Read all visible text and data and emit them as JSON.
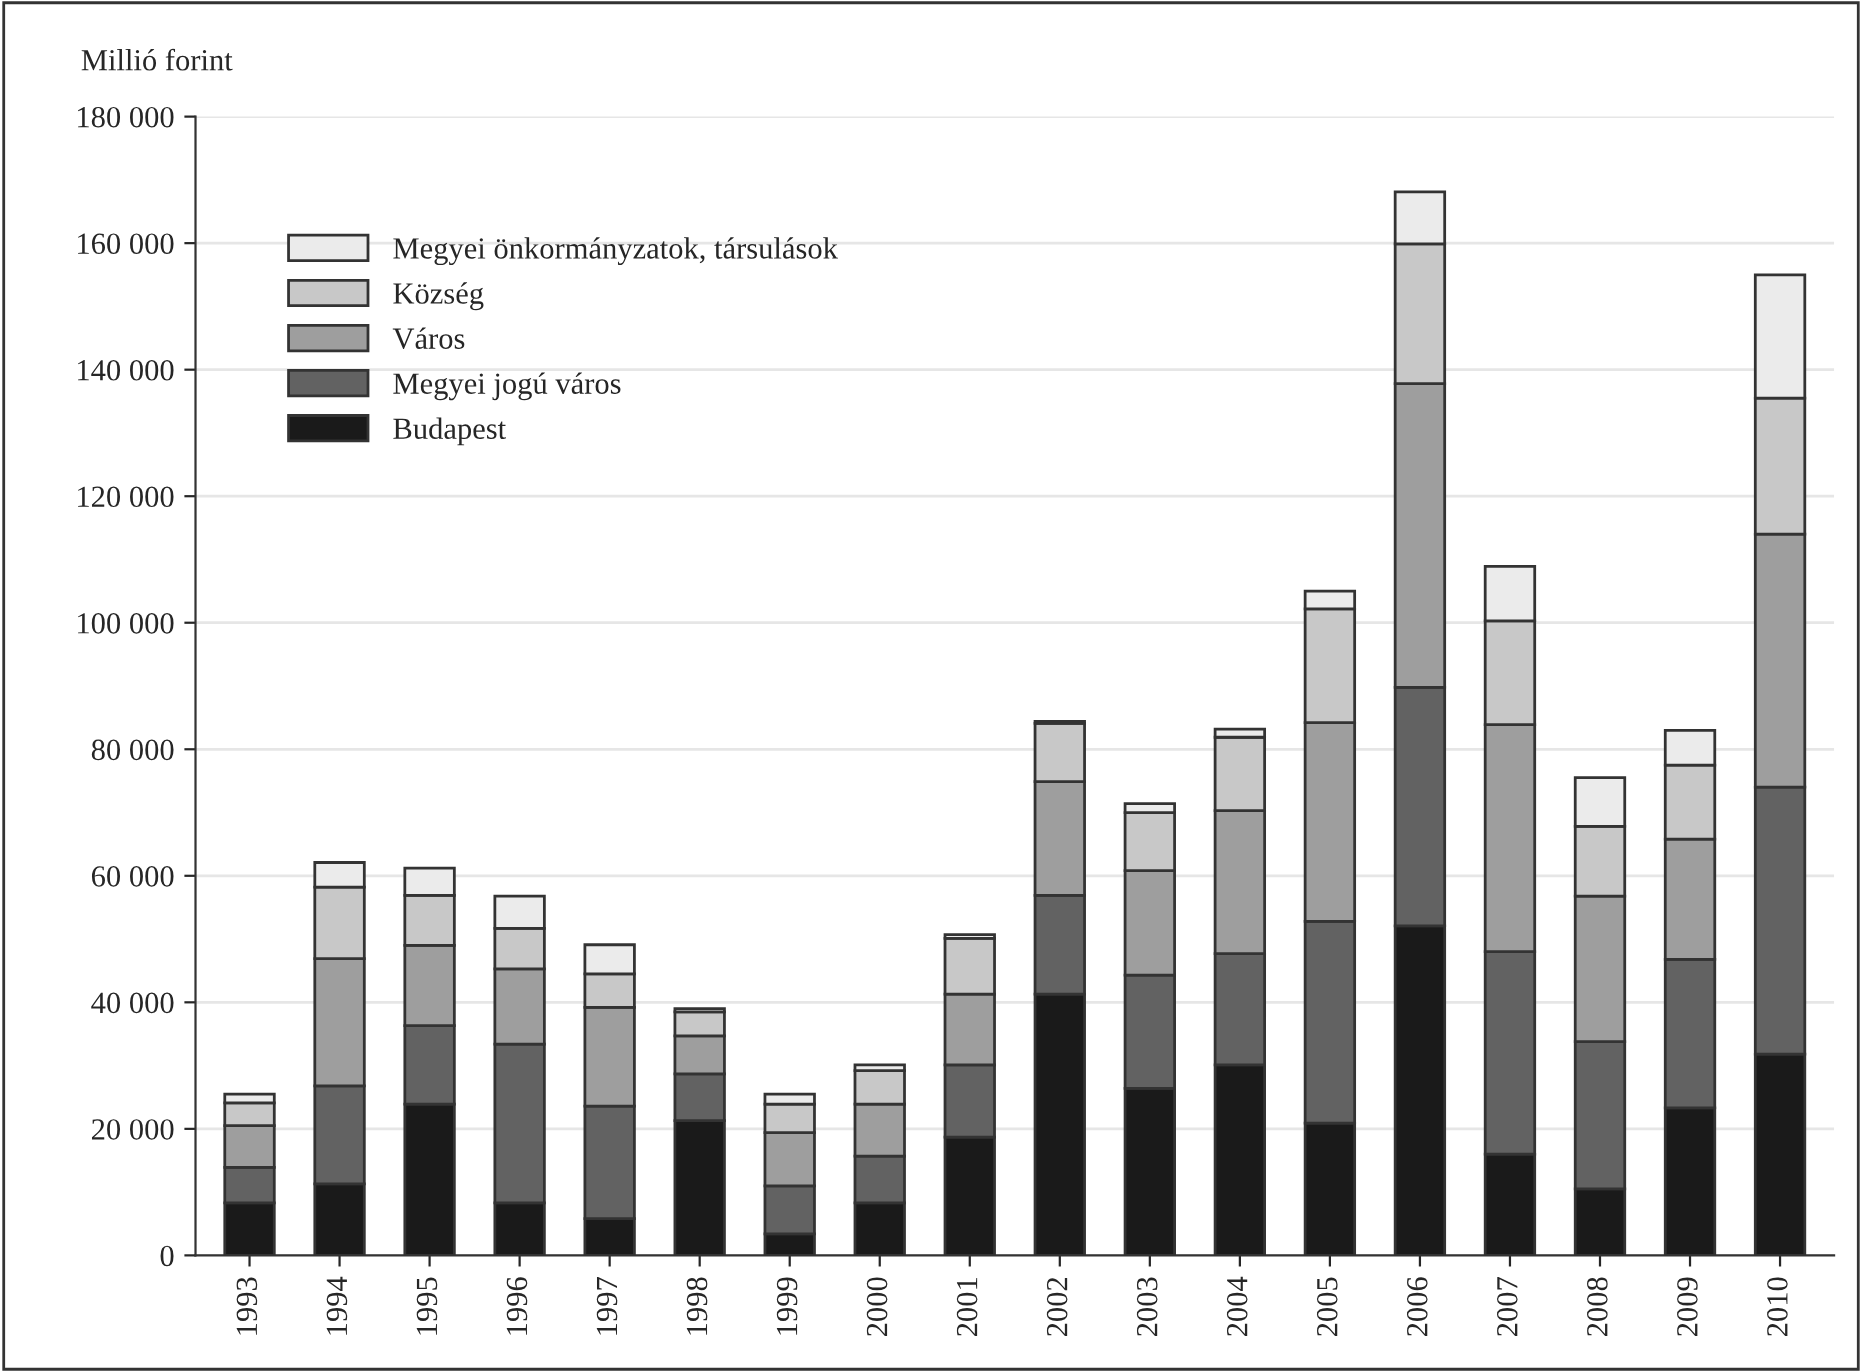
{
  "chart_data": {
    "type": "bar",
    "stacked": true,
    "ylabel": "Millió forint",
    "categories": [
      "1993",
      "1994",
      "1995",
      "1996",
      "1997",
      "1998",
      "1999",
      "2000",
      "2001",
      "2002",
      "2003",
      "2004",
      "2005",
      "2006",
      "2007",
      "2008",
      "2009",
      "2010"
    ],
    "series": [
      {
        "name": "Budapest",
        "color": "#1a1a1a",
        "values": [
          8300,
          11300,
          23900,
          8300,
          5800,
          21300,
          3400,
          8300,
          18700,
          41300,
          26400,
          30100,
          20900,
          52100,
          16000,
          10500,
          23300,
          31800
        ]
      },
      {
        "name": "Megyei jogú város",
        "color": "#626262",
        "values": [
          5600,
          15500,
          12400,
          25100,
          17800,
          7400,
          7600,
          7400,
          11400,
          15600,
          17900,
          17600,
          31900,
          37700,
          32000,
          23300,
          23500,
          42200
        ]
      },
      {
        "name": "Város",
        "color": "#9e9e9e",
        "values": [
          6600,
          20100,
          12700,
          11900,
          15600,
          6000,
          8400,
          8200,
          11200,
          18000,
          16500,
          22600,
          31400,
          48000,
          35900,
          23000,
          19000,
          40000
        ]
      },
      {
        "name": "Község",
        "color": "#c8c8c8",
        "values": [
          3600,
          11300,
          7900,
          6400,
          5300,
          3800,
          4500,
          5300,
          8800,
          9200,
          9200,
          11600,
          18000,
          22100,
          16400,
          11000,
          11700,
          21500
        ]
      },
      {
        "name": "Megyei önkormányzatok, társulások",
        "color": "#ebebeb",
        "values": [
          1400,
          3900,
          4300,
          5100,
          4600,
          500,
          1600,
          900,
          600,
          300,
          1400,
          1300,
          2800,
          8200,
          8600,
          7700,
          5500,
          19500
        ]
      }
    ],
    "ylim": [
      0,
      180000
    ],
    "yticks": [
      0,
      {
        "value": 20000,
        "label": "20 000"
      },
      {
        "value": 40000,
        "label": "40 000"
      },
      {
        "value": 60000,
        "label": "60 000"
      },
      {
        "value": 80000,
        "label": "80 000"
      },
      {
        "value": 100000,
        "label": "100 000"
      },
      {
        "value": 120000,
        "label": "120 000"
      },
      {
        "value": 140000,
        "label": "140 000"
      },
      {
        "value": 160000,
        "label": "160 000"
      },
      {
        "value": 180000,
        "label": "180 000"
      }
    ],
    "grid": "y",
    "legend": "top left"
  }
}
